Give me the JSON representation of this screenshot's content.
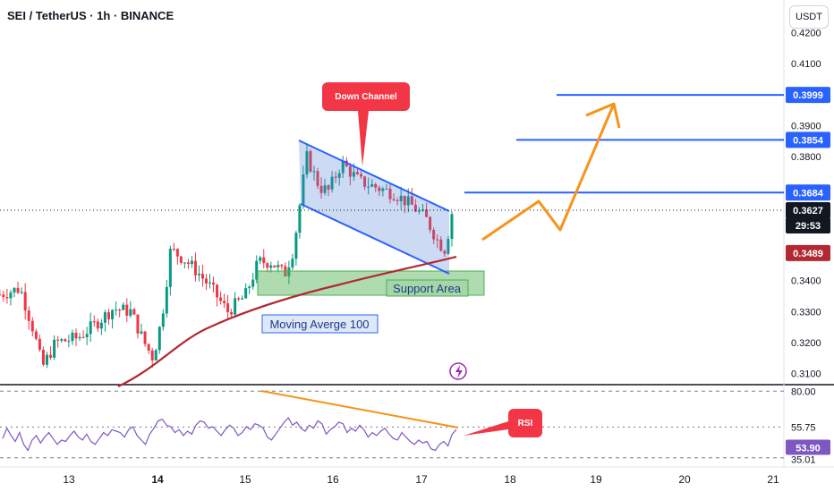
{
  "header": {
    "symbol": "SEI / TetherUS · 1h · BINANCE",
    "currency_button": "USDT"
  },
  "chart_data": [
    {
      "type": "candlestick",
      "title": "SEI / TetherUS · 1h · BINANCE",
      "y_axis": {
        "ticks": [
          "0.4200",
          "0.4100",
          "0.3900",
          "0.3800",
          "0.3400",
          "0.3300",
          "0.3200",
          "0.3100"
        ],
        "ylim": [
          0.307,
          0.4265
        ]
      },
      "x_axis": {
        "ticks": [
          "13",
          "14",
          "15",
          "16",
          "17",
          "18",
          "19",
          "20",
          "21"
        ]
      },
      "price_labels": [
        {
          "value": "0.3999",
          "color": "#2962ff"
        },
        {
          "value": "0.3854",
          "color": "#2962ff"
        },
        {
          "value": "0.3684",
          "color": "#2962ff"
        },
        {
          "value": "0.3627",
          "color": "#131722"
        },
        {
          "value": "29:53",
          "color": "#131722"
        },
        {
          "value": "0.3489",
          "color": "#b22833"
        }
      ],
      "levels": [
        0.3999,
        0.3854,
        0.3684
      ],
      "current_price": 0.3627,
      "countdown": "29:53",
      "ma100_value": 0.3489,
      "annotations": {
        "down_channel": "Down Channel",
        "support_area": "Support Area",
        "moving_average": "Moving Averge 100"
      },
      "colors": {
        "up": "#089981",
        "down": "#f23645",
        "level_line": "#2962ff",
        "ma100": "#b22833",
        "projection": "#f7931a",
        "channel_fill": "#4a7bd8",
        "support_fill": "#4caf50",
        "callout": "#f23645"
      }
    },
    {
      "type": "line",
      "title": "RSI",
      "y_axis": {
        "ticks": [
          "80.00",
          "55.75",
          "53.90",
          "35.01"
        ],
        "ylim": [
          30,
          82
        ]
      },
      "series": [
        {
          "name": "RSI",
          "values": [
            48,
            55,
            50,
            46,
            52,
            44,
            40,
            47,
            50,
            45,
            49,
            52,
            48,
            44,
            47,
            46,
            50,
            53,
            49,
            47,
            51,
            46,
            44,
            48,
            52,
            50,
            54,
            53,
            52,
            49,
            54,
            56,
            50,
            47,
            44,
            51,
            55,
            60,
            61,
            57,
            56,
            52,
            54,
            50,
            53,
            51,
            57,
            60,
            59,
            55,
            56,
            53,
            50,
            54,
            57,
            55,
            50,
            52,
            56,
            54,
            58,
            57,
            55,
            49,
            47,
            51,
            55,
            59,
            62,
            57,
            59,
            55,
            53,
            57,
            55,
            60,
            58,
            51,
            54,
            56,
            59,
            58,
            52,
            55,
            53,
            57,
            54,
            49,
            52,
            50,
            53,
            55,
            51,
            48,
            47,
            52,
            49,
            46,
            44,
            47,
            45,
            46,
            41,
            40,
            44,
            46,
            43,
            51,
            54
          ],
          "color": "#7e57c2"
        }
      ],
      "current_value": 53.9,
      "annotations": {
        "callout": "RSI"
      },
      "colors": {
        "divergence": "#f7931a",
        "callout": "#f23645"
      }
    }
  ]
}
